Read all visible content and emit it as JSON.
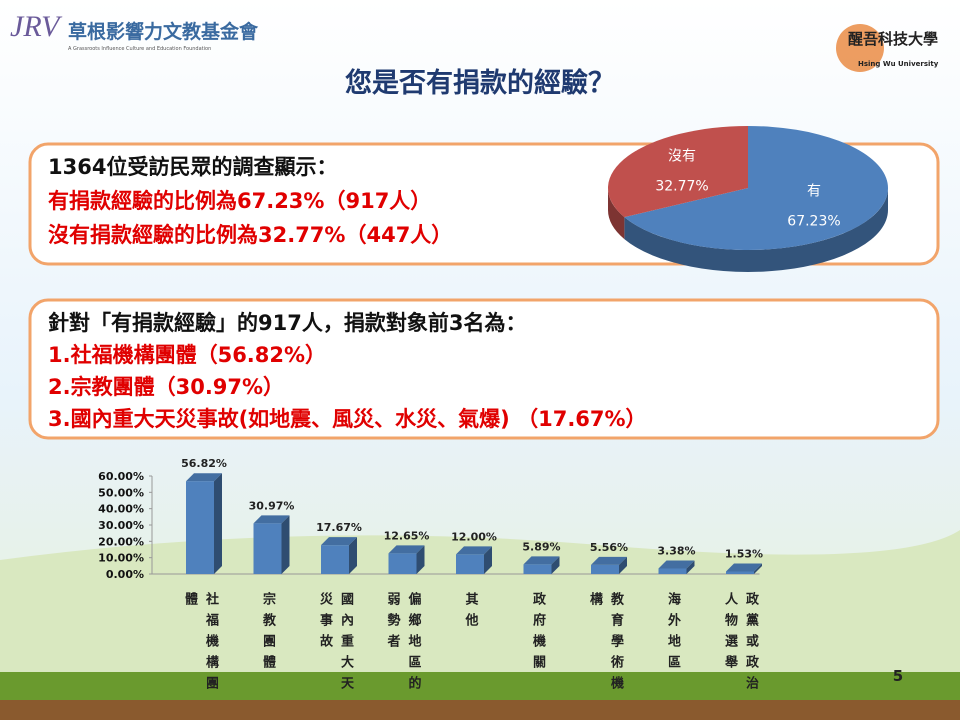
{
  "header": {
    "foundation": "草根影響力文教基金會",
    "foundation_en": "A Grassroots Influence Culture and Education Foundation",
    "university": "醒吾科技大學",
    "university_en": "Hsing Wu University"
  },
  "title": "您是否有捐款的經驗？",
  "box1": {
    "lines": [
      "1364位受訪民眾的調查顯示：",
      "有捐款經驗的比例為67.23%（917人）",
      "沒有捐款經驗的比例為32.77%（447人）"
    ]
  },
  "box2": {
    "lines": [
      "針對「有捐款經驗」的917人，捐款對象前3名為：",
      "1.社福機構團體（56.82%）",
      "2.宗教團體（30.97%）",
      "3.國內重大天災事故(如地震、風災、水災、氣爆) （17.67%）"
    ]
  },
  "page_number": "5",
  "chart_data": [
    {
      "type": "pie",
      "categories": [
        "有",
        "沒有"
      ],
      "values": [
        67.23,
        32.77
      ],
      "value_labels": [
        "67.23%",
        "32.77%"
      ],
      "colors": [
        "#4f81bd",
        "#c0504d"
      ]
    },
    {
      "type": "bar",
      "categories": [
        "社福機構團體",
        "宗教團體",
        "國內重大天災事故",
        "偏鄉地區的弱勢者",
        "其他",
        "政府機關",
        "教育學術機構",
        "海外地區",
        "政黨或政治人物選舉"
      ],
      "values": [
        56.82,
        30.97,
        17.67,
        12.65,
        12.0,
        5.89,
        5.56,
        3.38,
        1.53
      ],
      "value_labels": [
        "56.82%",
        "30.97%",
        "17.67%",
        "12.65%",
        "12.00%",
        "5.89%",
        "5.56%",
        "3.38%",
        "1.53%"
      ],
      "color": "#4f81bd",
      "ylim": [
        0,
        60
      ],
      "yticks": [
        {
          "value": 0,
          "label": "0.00%"
        },
        {
          "value": 10,
          "label": "10.00%"
        },
        {
          "value": 20,
          "label": "20.00%"
        },
        {
          "value": 30,
          "label": "30.00%"
        },
        {
          "value": 40,
          "label": "40.00%"
        },
        {
          "value": 50,
          "label": "50.00%"
        },
        {
          "value": 60,
          "label": "60.00%"
        }
      ]
    }
  ]
}
